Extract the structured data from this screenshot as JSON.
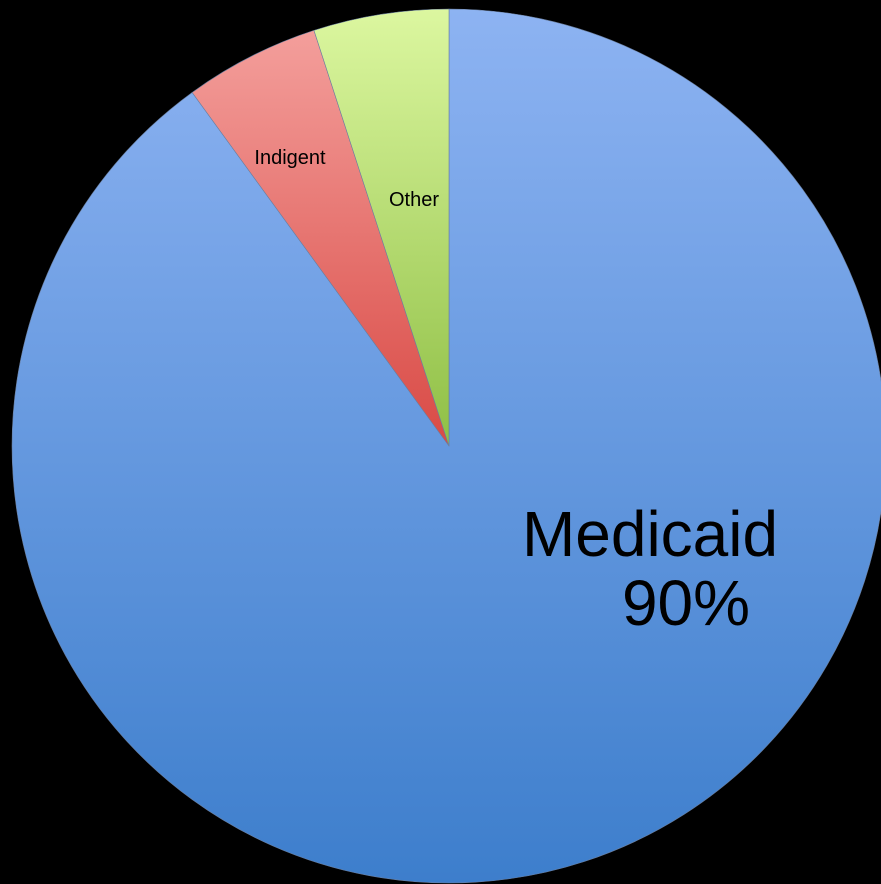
{
  "chart_data": {
    "type": "pie",
    "title": "",
    "start_angle": "12 o'clock",
    "direction": "clockwise",
    "slices": [
      {
        "label": "Medicaid",
        "value": 90,
        "value_label": "90%",
        "color": "#8DB3F2",
        "color_dark": "#3D7ECC"
      },
      {
        "label": "Indigent",
        "value": 5,
        "value_label": "",
        "color": "#F5A3A0",
        "color_dark": "#D94A45"
      },
      {
        "label": "Other",
        "value": 5,
        "value_label": "",
        "color": "#DCF7A0",
        "color_dark": "#8FBF45"
      }
    ],
    "legend": "none",
    "background": "#000000"
  }
}
